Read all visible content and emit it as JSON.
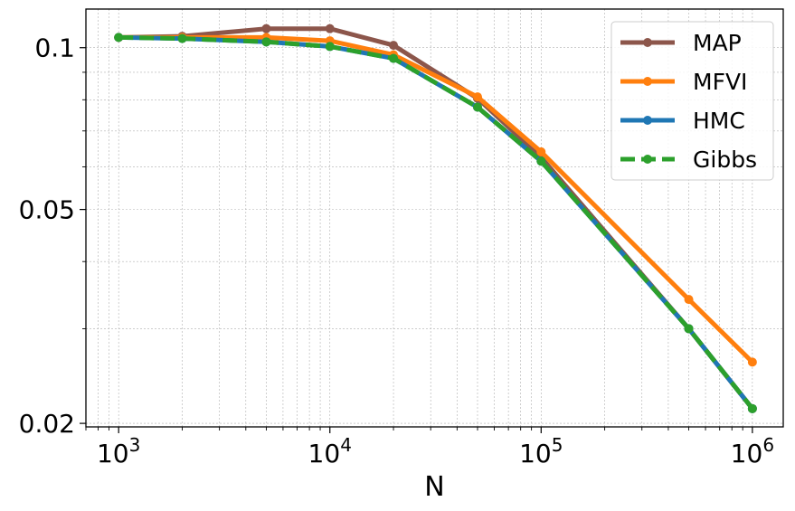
{
  "chart_data": {
    "type": "line",
    "title": "",
    "xlabel": "N",
    "ylabel": "",
    "xscale": "log",
    "yscale": "log",
    "xlim": [
      700,
      1400000
    ],
    "ylim": [
      0.0197,
      0.118
    ],
    "grid": true,
    "legend_position": "top-right",
    "x": [
      1000,
      2000,
      5000,
      10000,
      20000,
      50000,
      100000,
      500000,
      1000000
    ],
    "x_ticks": [
      {
        "value": 1000,
        "base": "10",
        "exp": "3"
      },
      {
        "value": 10000,
        "base": "10",
        "exp": "4"
      },
      {
        "value": 100000,
        "base": "10",
        "exp": "5"
      },
      {
        "value": 1000000,
        "base": "10",
        "exp": "6"
      }
    ],
    "y_ticks": [
      {
        "value": 0.1,
        "label": "0.1"
      },
      {
        "value": 0.05,
        "label": "0.05"
      },
      {
        "value": 0.02,
        "label": "0.02"
      }
    ],
    "series": [
      {
        "name": "MAP",
        "color": "#8c564b",
        "dash": false,
        "values": [
          0.1045,
          0.105,
          0.1085,
          0.1085,
          0.101,
          0.0805,
          0.0625,
          0.03,
          0.0213
        ]
      },
      {
        "name": "MFVI",
        "color": "#ff7f0e",
        "dash": false,
        "values": [
          0.1045,
          0.1045,
          0.1045,
          0.103,
          0.097,
          0.081,
          0.064,
          0.034,
          0.026
        ]
      },
      {
        "name": "HMC",
        "color": "#1f77b4",
        "dash": false,
        "values": [
          0.1045,
          0.104,
          0.1025,
          0.1005,
          0.0955,
          0.0775,
          0.0615,
          0.03,
          0.0213
        ]
      },
      {
        "name": "Gibbs",
        "color": "#2ca02c",
        "dash": true,
        "values": [
          0.1045,
          0.104,
          0.1025,
          0.1005,
          0.0955,
          0.0775,
          0.0615,
          0.03,
          0.0213
        ]
      }
    ]
  }
}
